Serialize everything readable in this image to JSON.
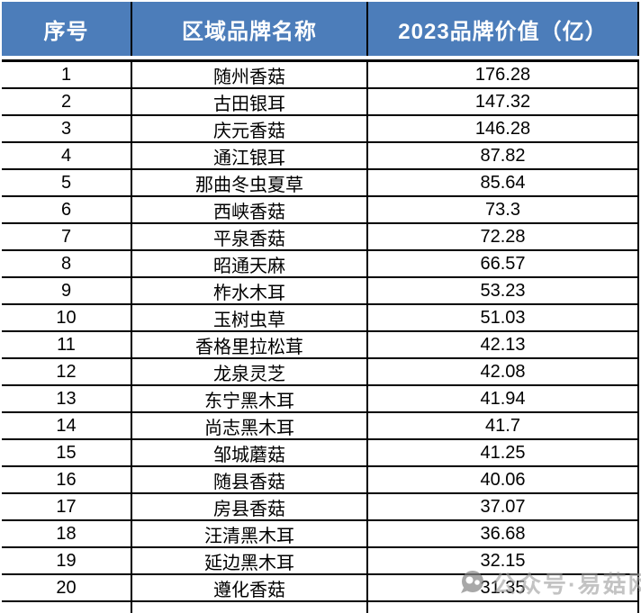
{
  "chart_data": {
    "type": "table",
    "title": "",
    "columns": [
      "序号",
      "区域品牌名称",
      "2023品牌价值（亿）"
    ],
    "rows": [
      [
        "1",
        "随州香菇",
        "176.28"
      ],
      [
        "2",
        "古田银耳",
        "147.32"
      ],
      [
        "3",
        "庆元香菇",
        "146.28"
      ],
      [
        "4",
        "通江银耳",
        "87.82"
      ],
      [
        "5",
        "那曲冬虫夏草",
        "85.64"
      ],
      [
        "6",
        "西峡香菇",
        "73.3"
      ],
      [
        "7",
        "平泉香菇",
        "72.28"
      ],
      [
        "8",
        "昭通天麻",
        "66.57"
      ],
      [
        "9",
        "柞水木耳",
        "53.23"
      ],
      [
        "10",
        "玉树虫草",
        "51.03"
      ],
      [
        "11",
        "香格里拉松茸",
        "42.13"
      ],
      [
        "12",
        "龙泉灵芝",
        "42.08"
      ],
      [
        "13",
        "东宁黑木耳",
        "41.94"
      ],
      [
        "14",
        "尚志黑木耳",
        "41.7"
      ],
      [
        "15",
        "邹城蘑菇",
        "41.25"
      ],
      [
        "16",
        "随县香菇",
        "40.06"
      ],
      [
        "17",
        "房县香菇",
        "37.07"
      ],
      [
        "18",
        "汪清黑木耳",
        "36.68"
      ],
      [
        "19",
        "延边黑木耳",
        "32.15"
      ],
      [
        "20",
        "遵化香菇",
        "31.35"
      ]
    ]
  },
  "watermark": {
    "text": "公众号·易菇网"
  },
  "colors": {
    "header_bg": "#4C7DBA",
    "header_text": "#FFFFFF",
    "border": "#000000",
    "row_bg": "#FFFFFF",
    "watermark_grey": "#9E9E9E"
  }
}
